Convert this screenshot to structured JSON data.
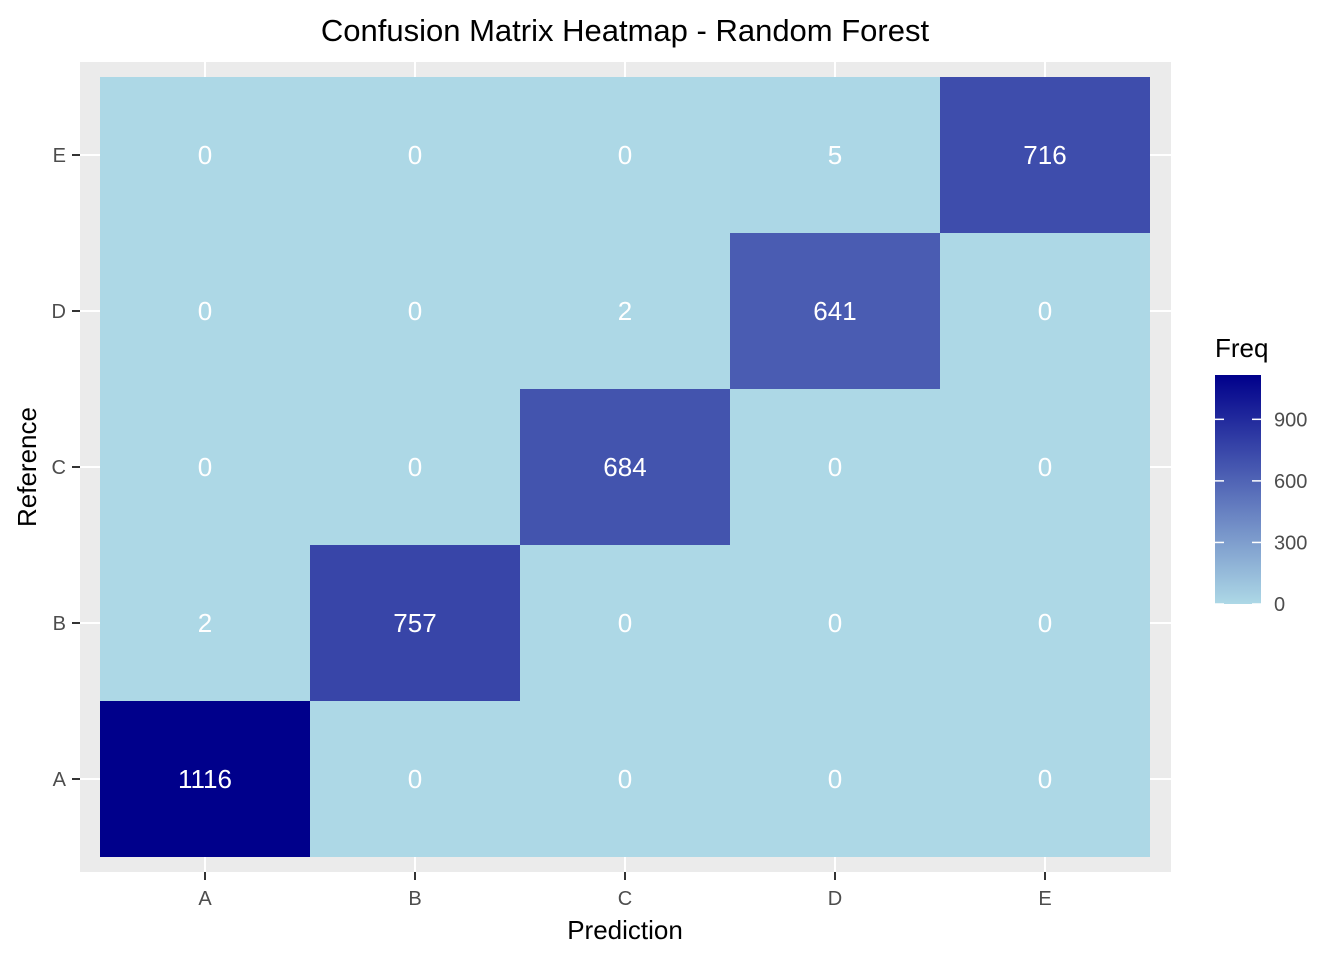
{
  "chart_data": {
    "type": "heatmap",
    "title": "Confusion Matrix Heatmap - Random Forest",
    "xlabel": "Prediction",
    "ylabel": "Reference",
    "x_categories": [
      "A",
      "B",
      "C",
      "D",
      "E"
    ],
    "y_categories": [
      "A",
      "B",
      "C",
      "D",
      "E"
    ],
    "cells": [
      {
        "prediction": "A",
        "reference": "A",
        "value": 1116
      },
      {
        "prediction": "B",
        "reference": "A",
        "value": 0
      },
      {
        "prediction": "C",
        "reference": "A",
        "value": 0
      },
      {
        "prediction": "D",
        "reference": "A",
        "value": 0
      },
      {
        "prediction": "E",
        "reference": "A",
        "value": 0
      },
      {
        "prediction": "A",
        "reference": "B",
        "value": 2
      },
      {
        "prediction": "B",
        "reference": "B",
        "value": 757
      },
      {
        "prediction": "C",
        "reference": "B",
        "value": 0
      },
      {
        "prediction": "D",
        "reference": "B",
        "value": 0
      },
      {
        "prediction": "E",
        "reference": "B",
        "value": 0
      },
      {
        "prediction": "A",
        "reference": "C",
        "value": 0
      },
      {
        "prediction": "B",
        "reference": "C",
        "value": 0
      },
      {
        "prediction": "C",
        "reference": "C",
        "value": 684
      },
      {
        "prediction": "D",
        "reference": "C",
        "value": 0
      },
      {
        "prediction": "E",
        "reference": "C",
        "value": 0
      },
      {
        "prediction": "A",
        "reference": "D",
        "value": 0
      },
      {
        "prediction": "B",
        "reference": "D",
        "value": 0
      },
      {
        "prediction": "C",
        "reference": "D",
        "value": 2
      },
      {
        "prediction": "D",
        "reference": "D",
        "value": 641
      },
      {
        "prediction": "E",
        "reference": "D",
        "value": 0
      },
      {
        "prediction": "A",
        "reference": "E",
        "value": 0
      },
      {
        "prediction": "B",
        "reference": "E",
        "value": 0
      },
      {
        "prediction": "C",
        "reference": "E",
        "value": 0
      },
      {
        "prediction": "D",
        "reference": "E",
        "value": 5
      },
      {
        "prediction": "E",
        "reference": "E",
        "value": 716
      }
    ],
    "legend": {
      "title": "Freq",
      "position": "right",
      "breaks": [
        0,
        300,
        600,
        900
      ],
      "range": [
        0,
        1116
      ],
      "low_color": "#add8e6",
      "high_color": "#00008b"
    },
    "panel_background": "#ebebeb",
    "grid": true
  }
}
